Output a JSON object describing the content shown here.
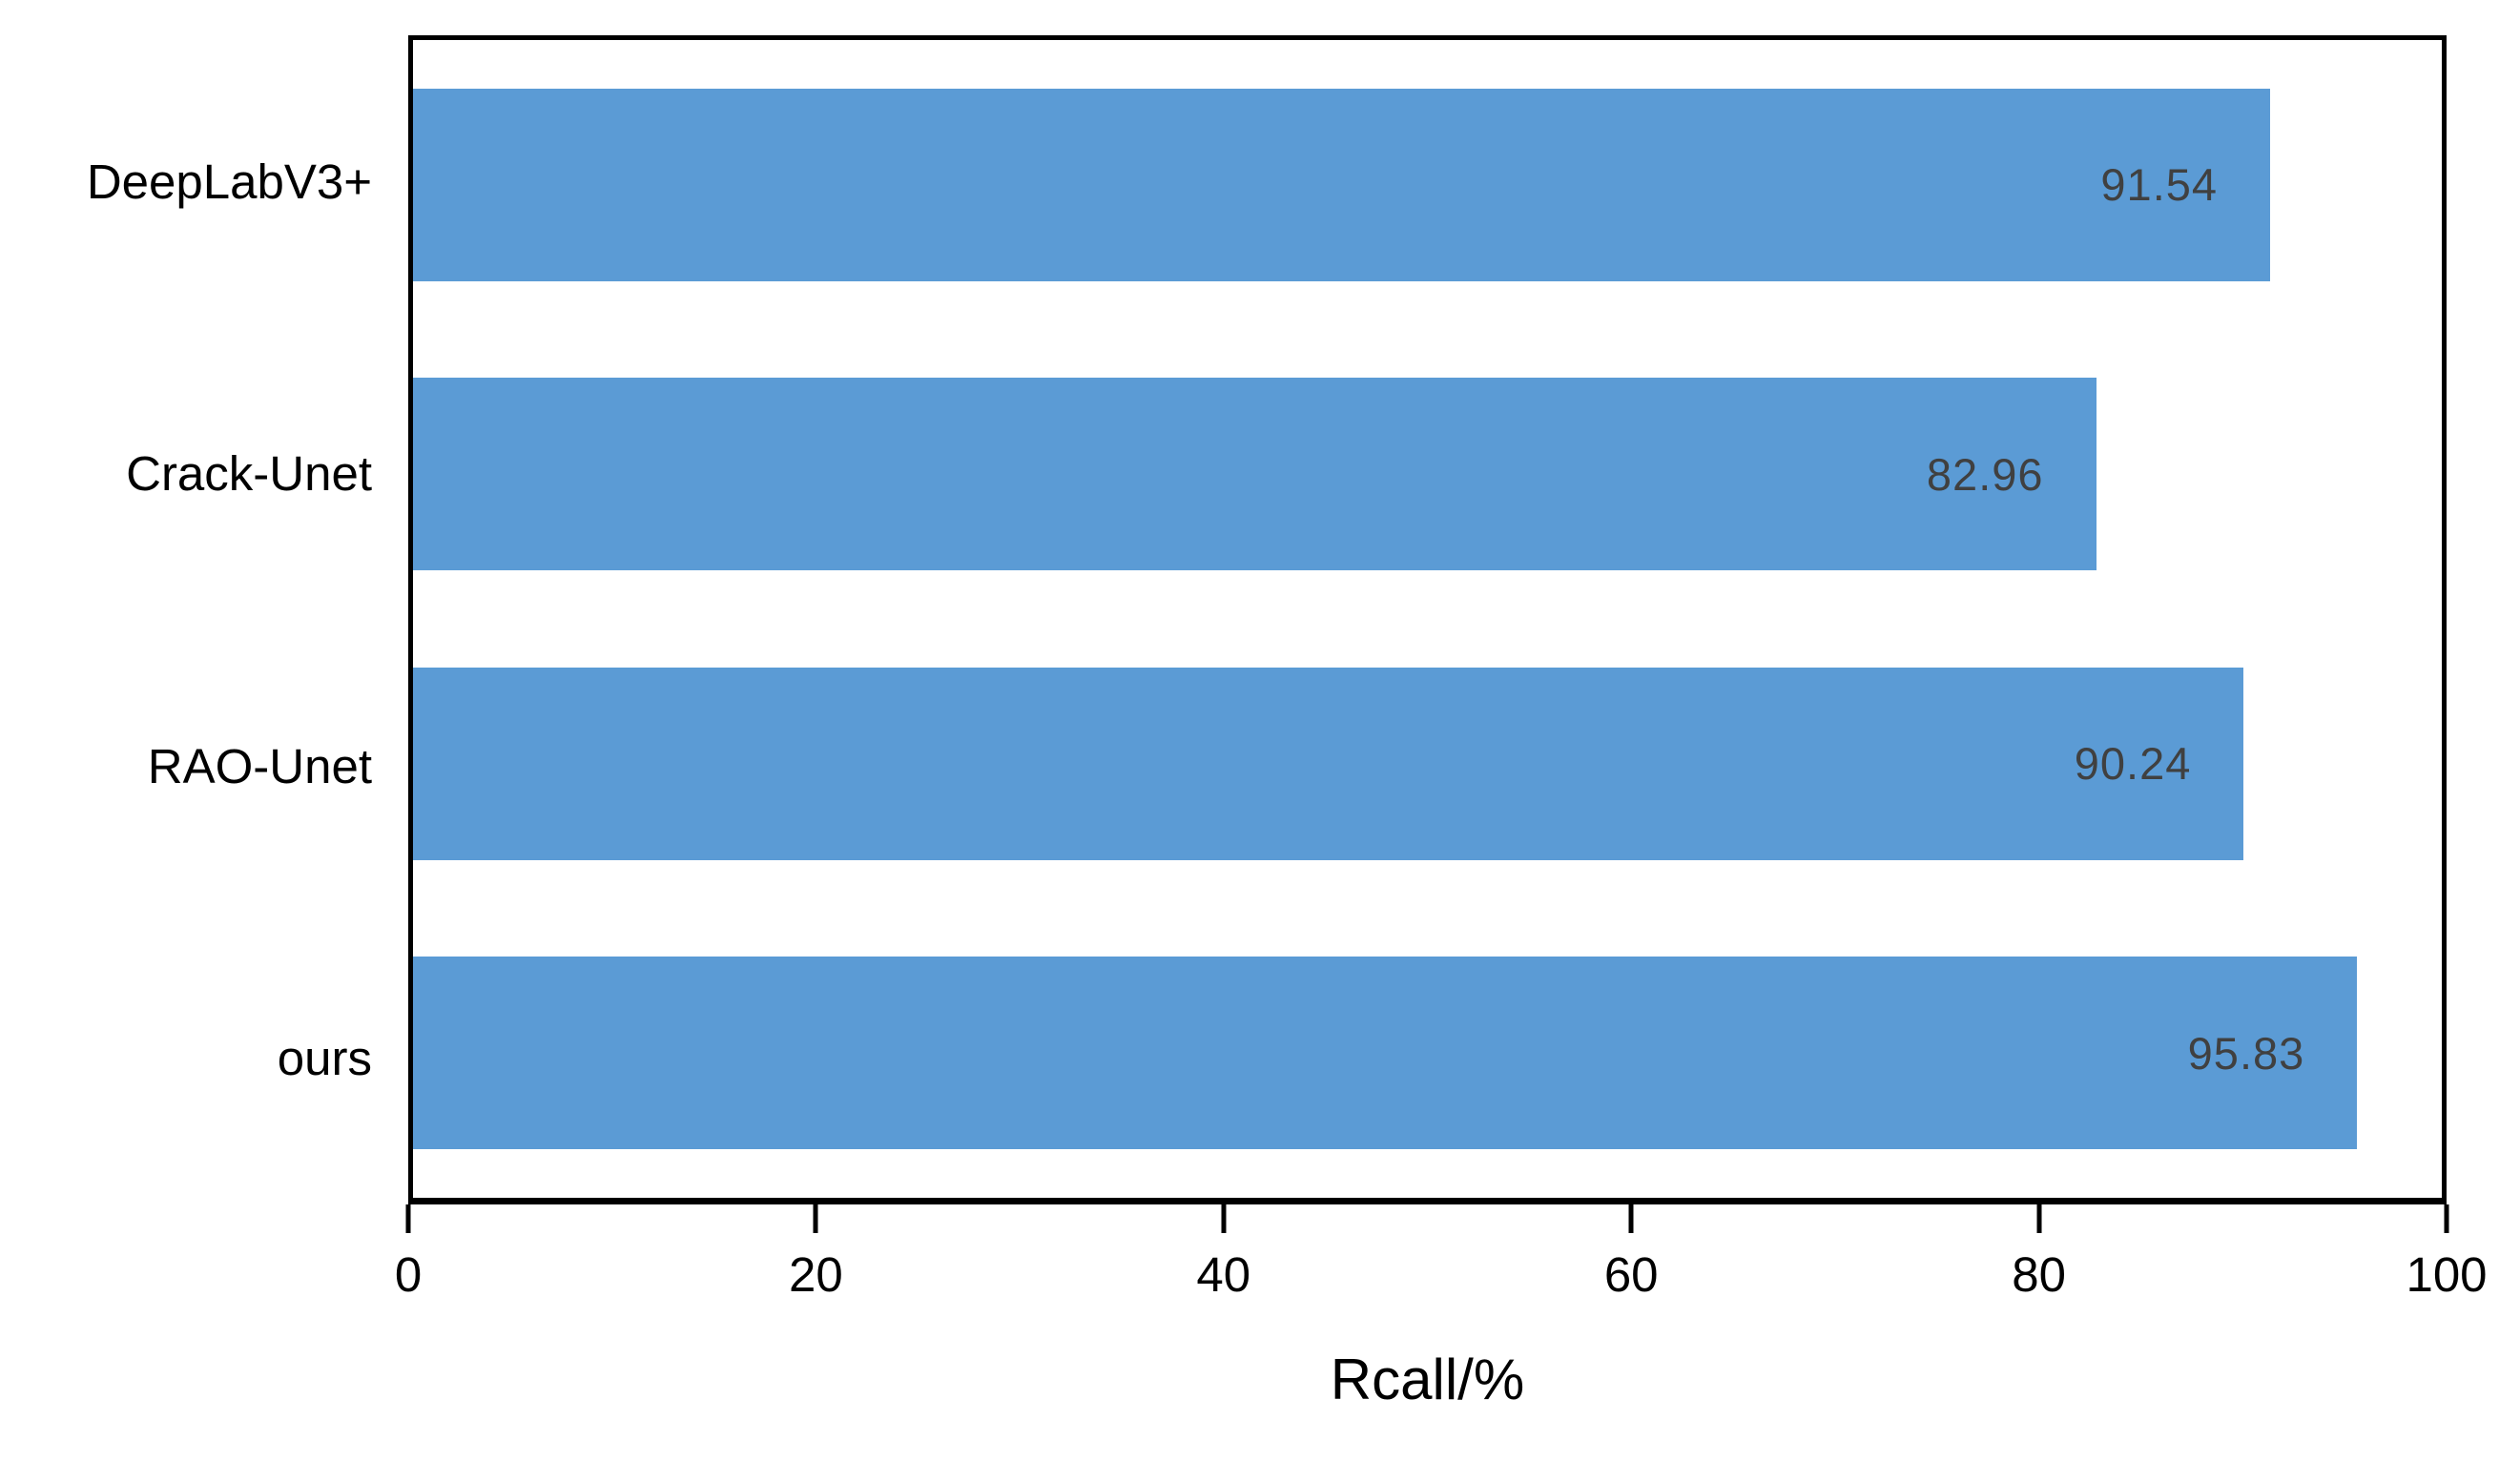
{
  "chart_data": {
    "type": "bar",
    "orientation": "horizontal",
    "title": "",
    "categories": [
      "DeepLabV3+",
      "Crack-Unet",
      "RAO-Unet",
      "ours"
    ],
    "values": [
      91.54,
      82.96,
      90.24,
      95.83
    ],
    "value_labels": [
      "91.54",
      "82.96",
      "90.24",
      "95.83"
    ],
    "xlabel": "Rcall/%",
    "ylabel": "",
    "xlim": [
      0,
      100
    ],
    "xticks": [
      0,
      20,
      40,
      60,
      80,
      100
    ],
    "xtick_labels": [
      "0",
      "20",
      "40",
      "60",
      "80",
      "100"
    ],
    "grid": false,
    "legend": false,
    "bar_color": "#5B9BD5",
    "value_label_color": "#404040",
    "axis_color": "#000000",
    "background_color": "#FFFFFF"
  }
}
